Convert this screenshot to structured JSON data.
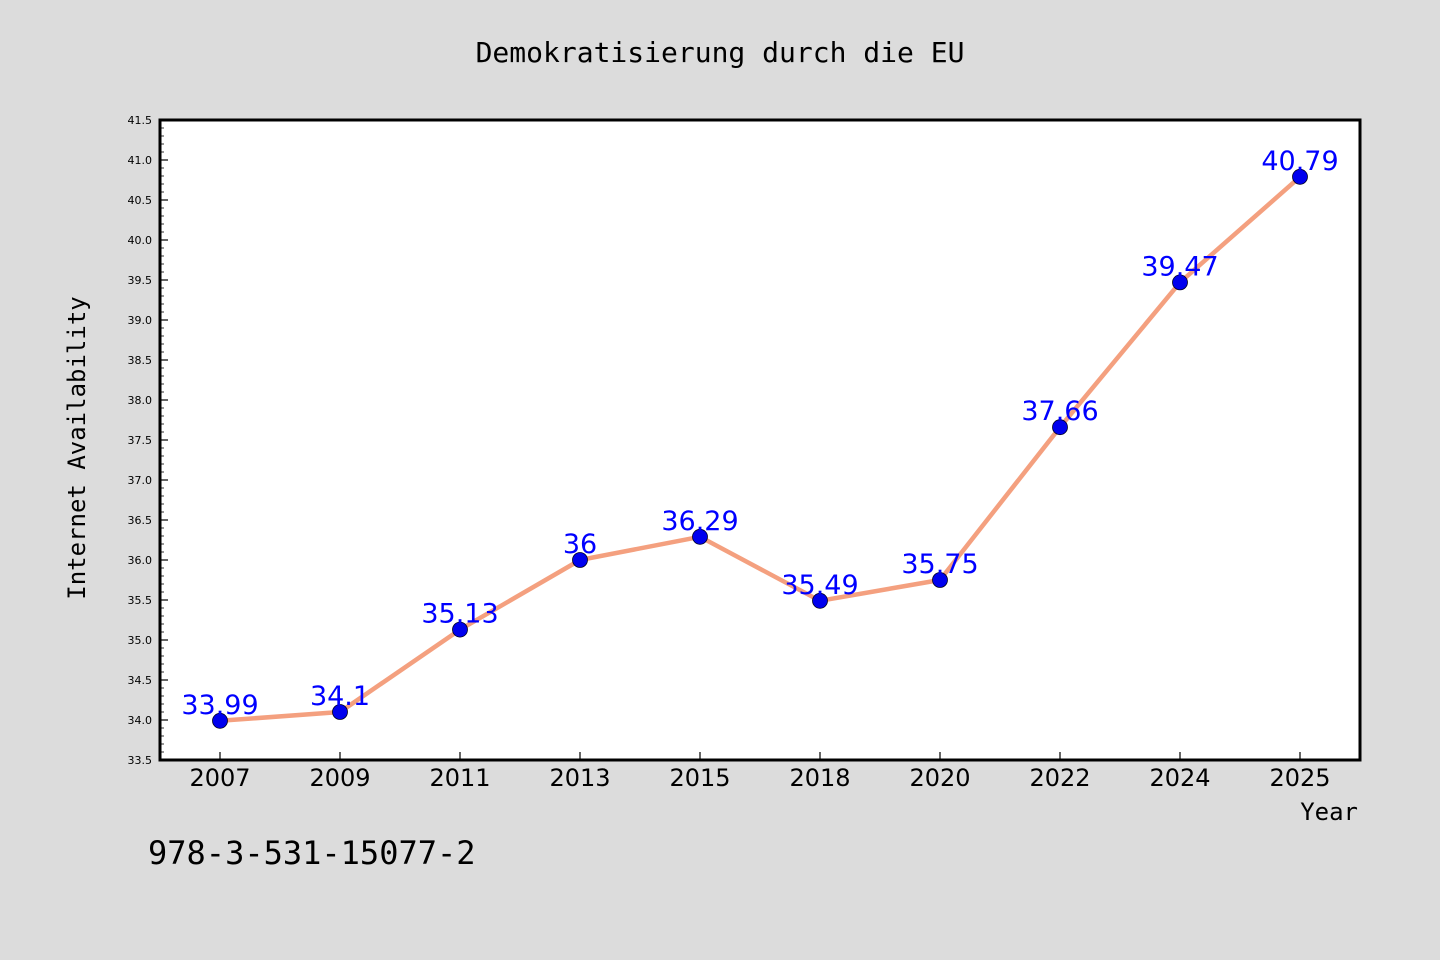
{
  "chart_data": {
    "type": "line",
    "title": "Demokratisierung durch die EU",
    "xlabel": "Year",
    "ylabel": "Internet Availability",
    "categories": [
      "2007",
      "2009",
      "2011",
      "2013",
      "2015",
      "2018",
      "2020",
      "2022",
      "2024",
      "2025"
    ],
    "series": [
      {
        "values": [
          33.99,
          34.1,
          35.13,
          36,
          36.29,
          35.49,
          35.75,
          37.66,
          39.47,
          40.79
        ],
        "labels": [
          "33.99",
          "34.1",
          "35.13",
          "36",
          "36.29",
          "35.49",
          "35.75",
          "37.66",
          "39.47",
          "40.79"
        ]
      }
    ],
    "ylim": [
      33.5,
      41.5
    ],
    "yticks": [
      "33.5",
      "34.0",
      "34.5",
      "35.0",
      "35.5",
      "36.0",
      "36.5",
      "37.0",
      "37.5",
      "38.0",
      "38.5",
      "39.0",
      "39.5",
      "40.0",
      "40.5",
      "41.0",
      "41.5"
    ],
    "grid": false,
    "legend": "none",
    "colors": {
      "background": "#dcdcdc",
      "plot_background": "#ffffff",
      "line": "#f4a07f",
      "marker": "#0000ee",
      "data_label": "#0000ff"
    }
  },
  "annotation": "978-3-531-15077-2"
}
